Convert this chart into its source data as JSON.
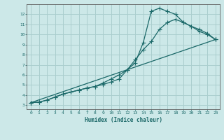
{
  "xlabel": "Humidex (Indice chaleur)",
  "ylabel": "",
  "bg_color": "#cce8e8",
  "grid_color": "#aacece",
  "line_color": "#1a6868",
  "xlim": [
    -0.5,
    23.5
  ],
  "ylim": [
    2.6,
    13.0
  ],
  "xticks": [
    0,
    1,
    2,
    3,
    4,
    5,
    6,
    7,
    8,
    9,
    10,
    11,
    12,
    13,
    14,
    15,
    16,
    17,
    18,
    19,
    20,
    21,
    22,
    23
  ],
  "yticks": [
    3,
    4,
    5,
    6,
    7,
    8,
    9,
    10,
    11,
    12
  ],
  "line1_x": [
    0,
    1,
    2,
    3,
    4,
    5,
    6,
    7,
    8,
    9,
    10,
    11,
    12,
    13,
    14,
    15,
    16,
    17,
    18,
    19,
    20,
    21,
    22,
    23
  ],
  "line1_y": [
    3.25,
    3.3,
    3.5,
    3.8,
    4.1,
    4.3,
    4.5,
    4.7,
    4.85,
    5.05,
    5.3,
    5.6,
    6.5,
    7.2,
    9.2,
    12.3,
    12.6,
    12.3,
    12.0,
    11.2,
    10.8,
    10.5,
    10.1,
    9.5
  ],
  "line2_x": [
    0,
    1,
    2,
    3,
    4,
    5,
    6,
    7,
    8,
    9,
    10,
    11,
    12,
    13,
    14,
    15,
    16,
    17,
    18,
    19,
    20,
    21,
    22,
    23
  ],
  "line2_y": [
    3.25,
    3.3,
    3.5,
    3.8,
    4.1,
    4.3,
    4.5,
    4.7,
    4.85,
    5.2,
    5.6,
    6.0,
    6.5,
    7.5,
    8.5,
    9.3,
    10.5,
    11.2,
    11.5,
    11.2,
    10.8,
    10.3,
    10.0,
    9.5
  ],
  "line3_x": [
    0,
    23
  ],
  "line3_y": [
    3.25,
    9.5
  ]
}
